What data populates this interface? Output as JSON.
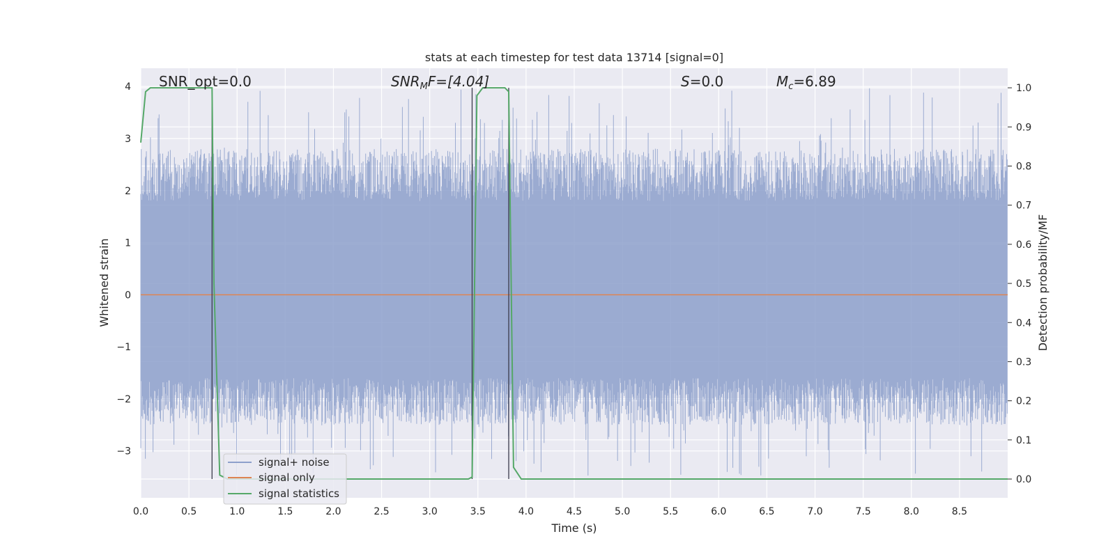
{
  "chart_data": {
    "type": "line",
    "title": "stats at each timestep for test data 13714 [signal=0]",
    "xlabel": "Time (s)",
    "ylabel_left": "Whitened strain",
    "ylabel_right": "Detection probability/MF",
    "xlim": [
      0.0,
      9.0
    ],
    "ylim_left": [
      -3.9,
      4.35
    ],
    "ylim_right": [
      -0.048,
      1.05
    ],
    "xticks": [
      "0.0",
      "0.5",
      "1.0",
      "1.5",
      "2.0",
      "2.5",
      "3.0",
      "3.5",
      "4.0",
      "4.5",
      "5.0",
      "5.5",
      "6.0",
      "6.5",
      "7.0",
      "7.5",
      "8.0",
      "8.5"
    ],
    "xtick_values": [
      0.0,
      0.5,
      1.0,
      1.5,
      2.0,
      2.5,
      3.0,
      3.5,
      4.0,
      4.5,
      5.0,
      5.5,
      6.0,
      6.5,
      7.0,
      7.5,
      8.0,
      8.5
    ],
    "yticks_left": [
      "−3",
      "−2",
      "−1",
      "0",
      "1",
      "2",
      "3",
      "4"
    ],
    "ytick_values_left": [
      -3,
      -2,
      -1,
      0,
      1,
      2,
      3,
      4
    ],
    "yticks_right": [
      "0.0",
      "0.1",
      "0.2",
      "0.3",
      "0.4",
      "0.5",
      "0.6",
      "0.7",
      "0.8",
      "0.9",
      "1.0"
    ],
    "ytick_values_right": [
      0.0,
      0.1,
      0.2,
      0.3,
      0.4,
      0.5,
      0.6,
      0.7,
      0.8,
      0.9,
      1.0
    ],
    "grid": true,
    "legend_position": "lower-left",
    "annotations": {
      "snr_opt": "SNR_opt=0.0",
      "snr_mf": "SNR",
      "snr_mf_sub": "M",
      "snr_mf_tail": "F=[4.04]",
      "s": "S",
      "s_tail": "=0.0",
      "mc": "M",
      "mc_sub": "c",
      "mc_tail": "=6.89"
    },
    "vertical_lines_x": [
      0.74,
      3.44,
      3.82
    ],
    "series": [
      {
        "name": "signal+ noise",
        "color": "#8da0cb",
        "description_values": "noise, amplitude mostly within -2.5..3, sampled densely",
        "envelope": {
          "typical_min": -1.6,
          "typical_max": 1.8,
          "peak_min": -3.5,
          "peak_max": 4.0
        }
      },
      {
        "name": "signal only",
        "color": "#dd8452",
        "values_constant": 0.0
      },
      {
        "name": "signal statistics",
        "color": "#55a868",
        "x": [
          0.0,
          0.05,
          0.1,
          0.2,
          0.3,
          0.4,
          0.5,
          0.6,
          0.7,
          0.74,
          0.76,
          0.82,
          0.9,
          1.0,
          2.0,
          3.0,
          3.4,
          3.44,
          3.49,
          3.55,
          3.6,
          3.7,
          3.78,
          3.82,
          3.87,
          3.95,
          4.0,
          5.0,
          6.0,
          7.0,
          8.0,
          9.0
        ],
        "y": [
          0.86,
          0.99,
          1.0,
          1.0,
          1.0,
          1.0,
          1.0,
          1.0,
          1.0,
          1.0,
          0.5,
          0.01,
          0.0,
          0.0,
          0.0,
          0.0,
          0.0,
          0.005,
          0.98,
          1.0,
          1.0,
          1.0,
          1.0,
          0.99,
          0.03,
          0.0,
          0.0,
          0.0,
          0.0,
          0.0,
          0.0,
          0.0
        ]
      }
    ]
  }
}
